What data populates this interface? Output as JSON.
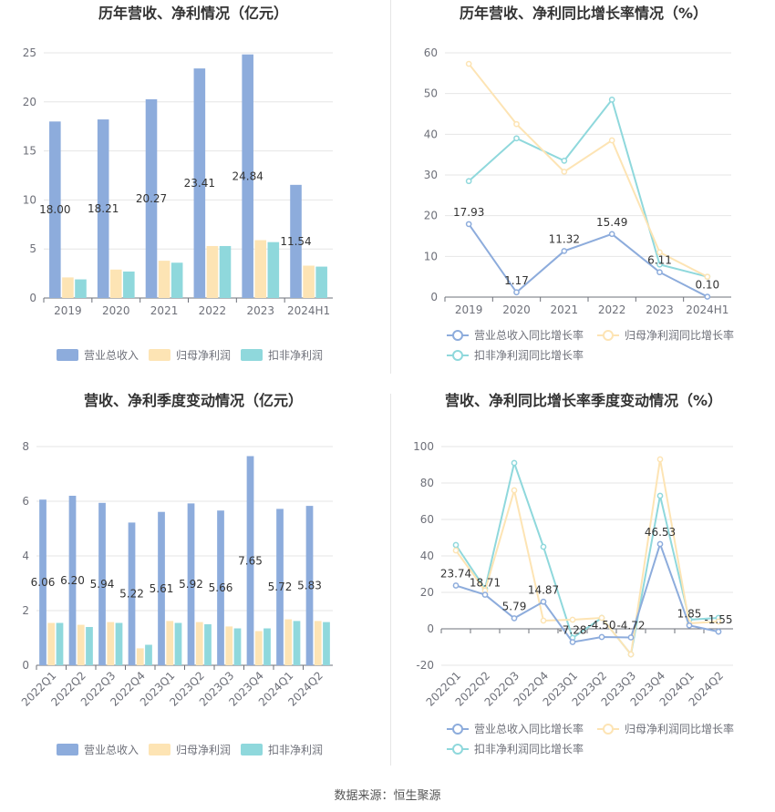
{
  "footer": {
    "source_label": "数据来源：恒生聚源"
  },
  "colors": {
    "revenue": "#8dacdc",
    "net_profit": "#fde4b4",
    "deducted_profit": "#8fd8dc",
    "grid": "#e6e6e6",
    "axis": "#6e7079",
    "title": "#333333",
    "label": "#333333"
  },
  "chart_data": [
    {
      "id": "annual-revenue-profit",
      "type": "bar",
      "title": "历年营收、净利情况（亿元）",
      "categories": [
        "2019",
        "2020",
        "2021",
        "2022",
        "2023",
        "2024H1"
      ],
      "series": [
        {
          "name": "营业总收入",
          "values": [
            18.0,
            18.21,
            20.27,
            23.41,
            24.84,
            11.54
          ],
          "color_key": "revenue"
        },
        {
          "name": "归母净利润",
          "values": [
            2.1,
            2.9,
            3.8,
            5.3,
            5.9,
            3.3
          ],
          "color_key": "net_profit"
        },
        {
          "name": "扣非净利润",
          "values": [
            1.9,
            2.7,
            3.6,
            5.3,
            5.7,
            3.2
          ],
          "color_key": "deducted_profit"
        }
      ],
      "data_labels": [
        "18.00",
        "18.21",
        "20.27",
        "23.41",
        "24.84",
        "11.54"
      ],
      "ylim": [
        0,
        25
      ],
      "yticks": [
        0,
        5,
        10,
        15,
        20,
        25
      ],
      "legend": "bottom"
    },
    {
      "id": "annual-growth",
      "type": "line",
      "title": "历年营收、净利同比增长率情况（%）",
      "categories": [
        "2019",
        "2020",
        "2021",
        "2022",
        "2023",
        "2024H1"
      ],
      "series": [
        {
          "name": "营业总收入同比增长率",
          "values": [
            17.93,
            1.17,
            11.32,
            15.49,
            6.11,
            0.1
          ],
          "color_key": "revenue"
        },
        {
          "name": "归母净利润同比增长率",
          "values": [
            57.3,
            42.5,
            30.8,
            38.5,
            11.0,
            5.0
          ],
          "color_key": "net_profit"
        },
        {
          "name": "扣非净利润同比增长率",
          "values": [
            28.5,
            39.0,
            33.5,
            48.5,
            8.0,
            5.0
          ],
          "color_key": "deducted_profit"
        }
      ],
      "data_labels": [
        "17.93",
        "1.17",
        "11.32",
        "15.49",
        "6.11",
        "0.10"
      ],
      "ylim": [
        0,
        60
      ],
      "yticks": [
        0,
        10,
        20,
        30,
        40,
        50,
        60
      ],
      "legend": "bottom"
    },
    {
      "id": "quarterly-revenue-profit",
      "type": "bar",
      "title": "营收、净利季度变动情况（亿元）",
      "categories": [
        "2022Q1",
        "2022Q2",
        "2022Q3",
        "2022Q4",
        "2023Q1",
        "2023Q2",
        "2023Q3",
        "2023Q4",
        "2024Q1",
        "2024Q2"
      ],
      "series": [
        {
          "name": "营业总收入",
          "values": [
            6.06,
            6.2,
            5.94,
            5.22,
            5.61,
            5.92,
            5.66,
            7.65,
            5.72,
            5.83
          ],
          "color_key": "revenue"
        },
        {
          "name": "归母净利润",
          "values": [
            1.55,
            1.48,
            1.58,
            0.62,
            1.62,
            1.58,
            1.42,
            1.25,
            1.68,
            1.62
          ],
          "color_key": "net_profit"
        },
        {
          "name": "扣非净利润",
          "values": [
            1.55,
            1.4,
            1.55,
            0.75,
            1.55,
            1.5,
            1.35,
            1.35,
            1.62,
            1.58
          ],
          "color_key": "deducted_profit"
        }
      ],
      "data_labels": [
        "6.06",
        "6.20",
        "5.94",
        "5.22",
        "5.61",
        "5.92",
        "5.66",
        "7.65",
        "5.72",
        "5.83"
      ],
      "ylim": [
        0,
        8
      ],
      "yticks": [
        0,
        2,
        4,
        6,
        8
      ],
      "legend": "bottom"
    },
    {
      "id": "quarterly-growth",
      "type": "line",
      "title": "营收、净利同比增长率季度变动情况（%）",
      "categories": [
        "2022Q1",
        "2022Q2",
        "2022Q3",
        "2022Q4",
        "2023Q1",
        "2023Q2",
        "2023Q3",
        "2023Q4",
        "2024Q1",
        "2024Q2"
      ],
      "series": [
        {
          "name": "营业总收入同比增长率",
          "values": [
            23.74,
            18.71,
            5.79,
            14.87,
            -7.28,
            -4.5,
            -4.72,
            46.53,
            1.85,
            -1.55
          ],
          "color_key": "revenue"
        },
        {
          "name": "归母净利润同比增长率",
          "values": [
            43.0,
            21.0,
            76.0,
            4.5,
            5.0,
            6.0,
            -14.0,
            93.0,
            3.0,
            4.0
          ],
          "color_key": "net_profit"
        },
        {
          "name": "扣非净利润同比增长率",
          "values": [
            46.0,
            22.0,
            91.0,
            45.0,
            -5.0,
            6.0,
            -14.0,
            73.0,
            5.0,
            6.0
          ],
          "color_key": "deducted_profit"
        }
      ],
      "data_labels": [
        "23.74",
        "18.71",
        "5.79",
        "14.87",
        "-7.28",
        "-4.50",
        "-4.72",
        "46.53",
        "1.85",
        "-1.55"
      ],
      "ylim": [
        -20,
        100
      ],
      "yticks": [
        -20,
        0,
        20,
        40,
        60,
        80,
        100
      ],
      "legend": "bottom"
    }
  ]
}
